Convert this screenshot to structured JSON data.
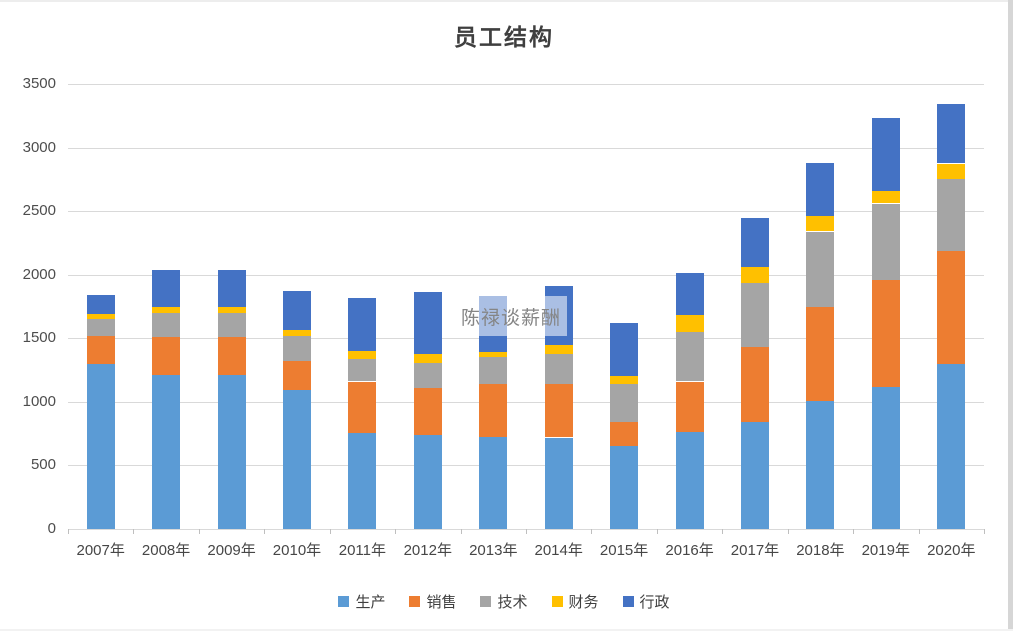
{
  "chart_data": {
    "type": "bar",
    "stacked": true,
    "title": "员工结构",
    "categories": [
      "2007年",
      "2008年",
      "2009年",
      "2010年",
      "2011年",
      "2012年",
      "2013年",
      "2014年",
      "2015年",
      "2016年",
      "2017年",
      "2018年",
      "2019年",
      "2020年"
    ],
    "series": [
      {
        "name": "生产",
        "color": "#5B9BD5",
        "values": [
          1300,
          1210,
          1210,
          1090,
          755,
          740,
          725,
          720,
          655,
          760,
          840,
          1005,
          1115,
          1300
        ]
      },
      {
        "name": "销售",
        "color": "#ED7D31",
        "values": [
          220,
          300,
          300,
          230,
          405,
          370,
          415,
          420,
          190,
          400,
          595,
          745,
          845,
          890
        ]
      },
      {
        "name": "技术",
        "color": "#A5A5A5",
        "values": [
          130,
          190,
          190,
          200,
          180,
          195,
          210,
          235,
          295,
          390,
          500,
          590,
          600,
          560
        ]
      },
      {
        "name": "财务",
        "color": "#FFC000",
        "values": [
          40,
          45,
          45,
          45,
          60,
          70,
          40,
          70,
          60,
          130,
          125,
          120,
          95,
          125
        ]
      },
      {
        "name": "行政",
        "color": "#4472C4",
        "values": [
          150,
          290,
          290,
          305,
          420,
          490,
          445,
          465,
          420,
          330,
          390,
          420,
          580,
          470
        ]
      }
    ],
    "y_ticks": [
      0,
      500,
      1000,
      1500,
      2000,
      2500,
      3000,
      3500
    ],
    "ylim": [
      0,
      3500
    ],
    "grid": true,
    "legend_position": "bottom",
    "gridline_color": "#D9D9D9",
    "axis_text_color": "#4D4D4D"
  },
  "watermark": {
    "text": "陈禄谈薪酬"
  }
}
